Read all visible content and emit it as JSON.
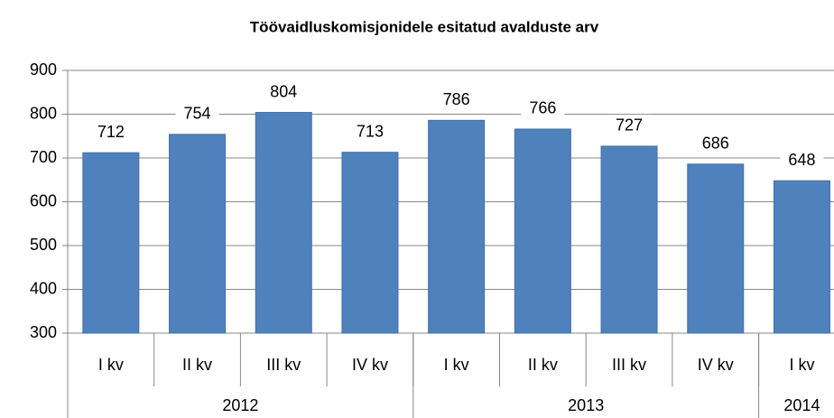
{
  "chart_data": {
    "type": "bar",
    "title": "Töövaidluskomisjonidele esitatud avalduste arv",
    "categories": [
      "I kv",
      "II kv",
      "III kv",
      "IV kv",
      "I kv",
      "II kv",
      "III kv",
      "IV kv",
      "I kv"
    ],
    "groups": [
      {
        "name": "2012",
        "size": 4
      },
      {
        "name": "2013",
        "size": 4
      },
      {
        "name": "2014",
        "size": 1
      }
    ],
    "values": [
      712,
      754,
      804,
      713,
      786,
      766,
      727,
      686,
      648
    ],
    "color": "#4f81bd",
    "ylim": [
      300,
      900
    ],
    "yticks": [
      300,
      400,
      500,
      600,
      700,
      800,
      900
    ],
    "grid": true
  }
}
